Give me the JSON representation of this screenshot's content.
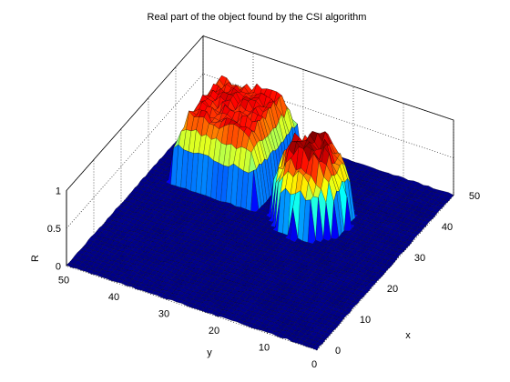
{
  "chart_data": {
    "type": "surface",
    "title": "Real part of the object found by the CSI algorithm",
    "xlabel": "x",
    "ylabel": "y",
    "zlabel": "R",
    "xlim": [
      0,
      50
    ],
    "ylim": [
      0,
      50
    ],
    "zlim": [
      0,
      1
    ],
    "xticks": [
      "0",
      "10",
      "20",
      "30",
      "40",
      "50"
    ],
    "yticks": [
      "0",
      "10",
      "20",
      "30",
      "40",
      "50"
    ],
    "zticks": [
      "0",
      "0.5",
      "1"
    ],
    "grid": true,
    "colormap": "jet",
    "grid_size": 51,
    "objects": [
      {
        "shape": "square",
        "x_range": [
          30,
          46
        ],
        "y_range": [
          29,
          45
        ],
        "level": 0.88
      },
      {
        "shape": "circle",
        "x_center": 33,
        "y_center": 19,
        "radius": 7,
        "level": 1.0
      }
    ]
  }
}
